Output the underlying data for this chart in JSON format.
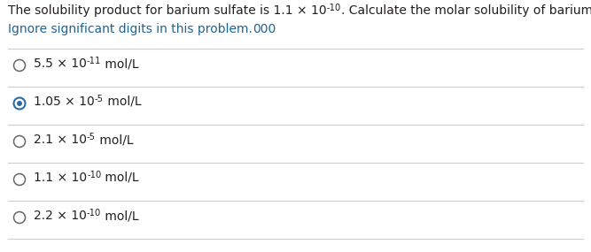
{
  "title1_prefix": "The solubility product for barium sulfate is 1.1 × 10",
  "title1_exp": "-10",
  "title1_suffix": ". Calculate the molar solubility of barium sulfate.",
  "title2_main": "Ignore significant digits in this problem.",
  "title2_suffix": "000",
  "options": [
    {
      "prefix": "5.5 × 10",
      "exp": "-11",
      "suffix": " mol/L",
      "selected": false
    },
    {
      "prefix": "1.05 × 10",
      "exp": "-5",
      "suffix": " mol/L",
      "selected": true
    },
    {
      "prefix": "2.1 × 10",
      "exp": "-5",
      "suffix": " mol/L",
      "selected": false
    },
    {
      "prefix": "1.1 × 10",
      "exp": "-10",
      "suffix": " mol/L",
      "selected": false
    },
    {
      "prefix": "2.2 × 10",
      "exp": "-10",
      "suffix": " mol/L",
      "selected": false
    }
  ],
  "bg_color": "#ffffff",
  "text_color": "#231f20",
  "blue_color": "#1f6391",
  "line_color": "#cccccc",
  "radio_unselected_color": "#666666",
  "radio_selected_color": "#2d6ca2",
  "title_fontsize": 10.0,
  "option_fontsize": 10.0,
  "sup_fontsize_ratio": 0.72
}
